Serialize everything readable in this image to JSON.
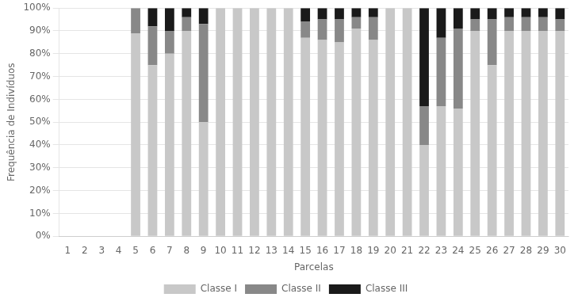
{
  "chart_data": {
    "type": "bar",
    "stacked": true,
    "xlabel": "Parcelas",
    "ylabel": "Frequência de Indivíduos",
    "categories": [
      "1",
      "2",
      "3",
      "4",
      "5",
      "6",
      "7",
      "8",
      "9",
      "10",
      "11",
      "12",
      "13",
      "14",
      "15",
      "16",
      "17",
      "18",
      "19",
      "20",
      "21",
      "22",
      "23",
      "24",
      "25",
      "26",
      "27",
      "28",
      "29",
      "30"
    ],
    "series": [
      {
        "name": "Classe I",
        "color": "#c8c8c8",
        "values": [
          0,
          0,
          0,
          0,
          89,
          75,
          80,
          90,
          50,
          100,
          100,
          100,
          100,
          100,
          87,
          86,
          85,
          91,
          86,
          100,
          100,
          40,
          57,
          56,
          90,
          75,
          90,
          90,
          90,
          90
        ]
      },
      {
        "name": "Classe II",
        "color": "#888888",
        "values": [
          0,
          0,
          0,
          0,
          11,
          17,
          10,
          6,
          43,
          0,
          0,
          0,
          0,
          0,
          7,
          9,
          10,
          5,
          10,
          0,
          0,
          17,
          30,
          35,
          5,
          20,
          6,
          6,
          6,
          5
        ]
      },
      {
        "name": "Classe III",
        "color": "#1a1a1a",
        "values": [
          0,
          0,
          0,
          0,
          0,
          8,
          10,
          4,
          7,
          0,
          0,
          0,
          0,
          0,
          6,
          5,
          5,
          4,
          4,
          0,
          0,
          43,
          13,
          9,
          5,
          5,
          4,
          4,
          4,
          5
        ]
      }
    ],
    "ylim": [
      0,
      100
    ],
    "yticks": [
      {
        "value": 0,
        "label": "0%"
      },
      {
        "value": 10,
        "label": "10%"
      },
      {
        "value": 20,
        "label": "20%"
      },
      {
        "value": 30,
        "label": "30%"
      },
      {
        "value": 40,
        "label": "40%"
      },
      {
        "value": 50,
        "label": "50%"
      },
      {
        "value": 60,
        "label": "60%"
      },
      {
        "value": 70,
        "label": "70%"
      },
      {
        "value": 80,
        "label": "80%"
      },
      {
        "value": 90,
        "label": "90%"
      },
      {
        "value": 100,
        "label": "100%"
      }
    ],
    "grid": true,
    "legend": "bottom"
  }
}
